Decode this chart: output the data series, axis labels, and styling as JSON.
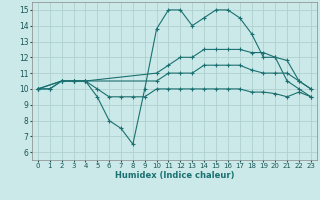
{
  "xlabel": "Humidex (Indice chaleur)",
  "bg_color": "#cce9e9",
  "line_color": "#1a7070",
  "grid_color": "#b0d0d0",
  "xlim": [
    -0.5,
    23.5
  ],
  "ylim": [
    5.5,
    15.5
  ],
  "xticks": [
    0,
    1,
    2,
    3,
    4,
    5,
    6,
    7,
    8,
    9,
    10,
    11,
    12,
    13,
    14,
    15,
    16,
    17,
    18,
    19,
    20,
    21,
    22,
    23
  ],
  "yticks": [
    6,
    7,
    8,
    9,
    10,
    11,
    12,
    13,
    14,
    15
  ],
  "series": [
    {
      "x": [
        0,
        1,
        2,
        3,
        4,
        5,
        6,
        7,
        8,
        9,
        10,
        11,
        12,
        13,
        14,
        15,
        16,
        17,
        18,
        19,
        20,
        21,
        22,
        23
      ],
      "y": [
        10,
        10,
        10.5,
        10.5,
        10.5,
        10,
        9.5,
        9.5,
        9.5,
        9.5,
        10,
        10,
        10,
        10,
        10,
        10,
        10,
        10,
        9.8,
        9.8,
        9.7,
        9.5,
        9.8,
        9.5
      ]
    },
    {
      "x": [
        0,
        2,
        3,
        4,
        10,
        11,
        12,
        13,
        14,
        15,
        16,
        17,
        18,
        19,
        20,
        21,
        22,
        23
      ],
      "y": [
        10,
        10.5,
        10.5,
        10.5,
        10.5,
        11,
        11,
        11,
        11.5,
        11.5,
        11.5,
        11.5,
        11.2,
        11,
        11,
        11,
        10.5,
        10
      ]
    },
    {
      "x": [
        0,
        2,
        3,
        4,
        10,
        11,
        12,
        13,
        14,
        15,
        16,
        17,
        18,
        19,
        20,
        21,
        22,
        23
      ],
      "y": [
        10,
        10.5,
        10.5,
        10.5,
        11,
        11.5,
        12,
        12,
        12.5,
        12.5,
        12.5,
        12.5,
        12.3,
        12.3,
        12,
        11.8,
        10.5,
        10
      ]
    },
    {
      "x": [
        0,
        1,
        2,
        3,
        4,
        5,
        6,
        7,
        8,
        9,
        10,
        11,
        12,
        13,
        14,
        15,
        16,
        17,
        18,
        19,
        20,
        21,
        22,
        23
      ],
      "y": [
        10,
        10,
        10.5,
        10.5,
        10.5,
        9.5,
        8.0,
        7.5,
        6.5,
        10,
        13.8,
        15,
        15,
        14,
        14.5,
        15,
        15,
        14.5,
        13.5,
        12,
        12,
        10.5,
        10,
        9.5
      ]
    }
  ]
}
